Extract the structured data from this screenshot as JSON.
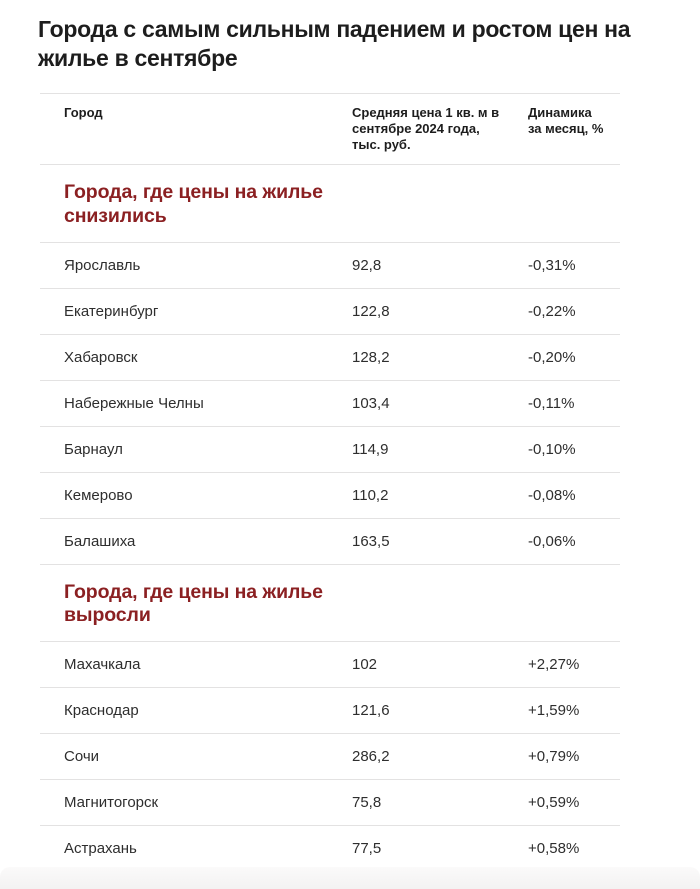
{
  "colors": {
    "accent_red": "#8b2022",
    "rule": "#e3e2e2",
    "text_primary": "#1d1d1d",
    "text_cell": "#2e2e2e"
  },
  "header": {
    "title": "Города с самым сильным падением и ростом цен на жилье в сентябре"
  },
  "table": {
    "columns": [
      {
        "id": "city",
        "label": "Город"
      },
      {
        "id": "price",
        "label": "Средняя цена 1 кв. м в сентябре 2024 года, тыс. руб."
      },
      {
        "id": "dynamics",
        "label": "Динамика за месяц, %"
      }
    ],
    "sections": [
      {
        "heading": "Города, где цены на жилье снизились",
        "rows": [
          {
            "city": "Ярославль",
            "price": "92,8",
            "dynamics": "-0,31%"
          },
          {
            "city": "Екатеринбург",
            "price": "122,8",
            "dynamics": "-0,22%"
          },
          {
            "city": "Хабаровск",
            "price": "128,2",
            "dynamics": "-0,20%"
          },
          {
            "city": "Набережные Челны",
            "price": "103,4",
            "dynamics": "-0,11%"
          },
          {
            "city": "Барнаул",
            "price": "114,9",
            "dynamics": "-0,10%"
          },
          {
            "city": "Кемерово",
            "price": "110,2",
            "dynamics": "-0,08%"
          },
          {
            "city": "Балашиха",
            "price": "163,5",
            "dynamics": "-0,06%"
          }
        ]
      },
      {
        "heading": "Города, где цены на жилье выросли",
        "rows": [
          {
            "city": "Махачкала",
            "price": "102",
            "dynamics": "+2,27%"
          },
          {
            "city": "Краснодар",
            "price": "121,6",
            "dynamics": "+1,59%"
          },
          {
            "city": "Сочи",
            "price": "286,2",
            "dynamics": "+0,79%"
          },
          {
            "city": "Магнитогорск",
            "price": "75,8",
            "dynamics": "+0,59%"
          },
          {
            "city": "Астрахань",
            "price": "77,5",
            "dynamics": "+0,58%"
          }
        ]
      }
    ]
  },
  "chart_data": {
    "type": "table",
    "title": "Города с самым сильным падением и ростом цен на жилье в сентябре",
    "columns": [
      "Город",
      "Средняя цена 1 кв. м в сентябре 2024 года, тыс. руб.",
      "Динамика за месяц, %"
    ],
    "sections": [
      {
        "heading": "Города, где цены на жилье снизились",
        "rows": [
          [
            "Ярославль",
            92.8,
            "-0,31%"
          ],
          [
            "Екатеринбург",
            122.8,
            "-0,22%"
          ],
          [
            "Хабаровск",
            128.2,
            "-0,20%"
          ],
          [
            "Набережные Челны",
            103.4,
            "-0,11%"
          ],
          [
            "Барнаул",
            114.9,
            "-0,10%"
          ],
          [
            "Кемерово",
            110.2,
            "-0,08%"
          ],
          [
            "Балашиха",
            163.5,
            "-0,06%"
          ]
        ]
      },
      {
        "heading": "Города, где цены на жилье выросли",
        "rows": [
          [
            "Махачкала",
            102,
            "+2,27%"
          ],
          [
            "Краснодар",
            121.6,
            "+1,59%"
          ],
          [
            "Сочи",
            286.2,
            "+0,79%"
          ],
          [
            "Магнитогорск",
            75.8,
            "+0,59%"
          ],
          [
            "Астрахань",
            77.5,
            "+0,58%"
          ]
        ]
      }
    ]
  }
}
